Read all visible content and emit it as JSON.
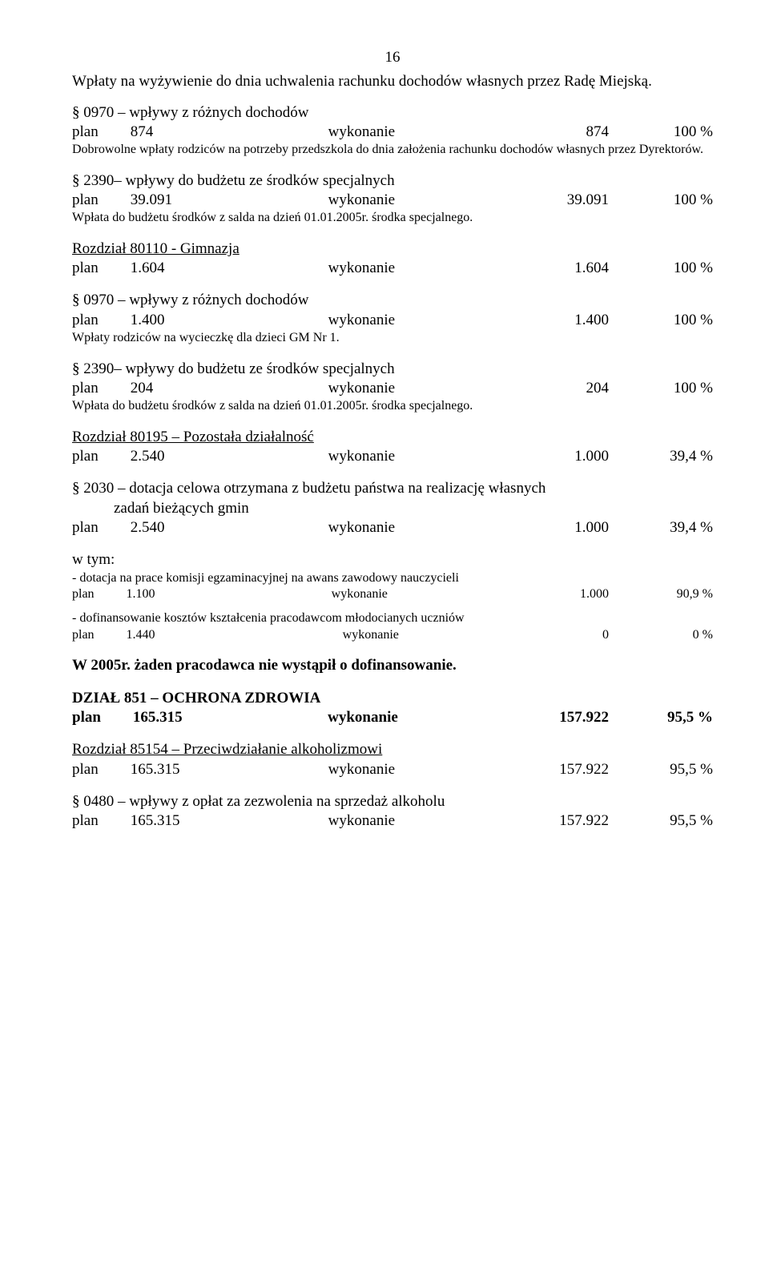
{
  "pageNumber": "16",
  "intro": "Wpłaty na wyżywienie do dnia uchwalenia rachunku dochodów własnych przez Radę Miejską.",
  "s0970a": {
    "title": "§ 0970 – wpływy z różnych dochodów",
    "row": {
      "c1": "plan",
      "c2": "874",
      "c3": "wykonanie",
      "c4": "874",
      "c5": "100 %"
    },
    "note": "Dobrowolne wpłaty rodziców na potrzeby przedszkola do dnia założenia rachunku dochodów własnych przez Dyrektorów."
  },
  "s2390a": {
    "title": "§ 2390– wpływy do budżetu ze środków specjalnych",
    "row": {
      "c1": "plan",
      "c2": "39.091",
      "c3": "wykonanie",
      "c4": "39.091",
      "c5": "100 %"
    },
    "note": "Wpłata do budżetu środków z salda na dzień 01.01.2005r. środka specjalnego."
  },
  "r80110": {
    "title": "Rozdział 80110 - Gimnazja",
    "row": {
      "c1": "plan",
      "c2": "1.604",
      "c3": "wykonanie",
      "c4": "1.604",
      "c5": "100 %"
    }
  },
  "s0970b": {
    "title": "§ 0970 – wpływy z różnych dochodów",
    "row": {
      "c1": "plan",
      "c2": "1.400",
      "c3": "wykonanie",
      "c4": "1.400",
      "c5": "100 %"
    },
    "note": "Wpłaty rodziców na wycieczkę dla dzieci GM Nr 1."
  },
  "s2390b": {
    "title": "§ 2390– wpływy do budżetu ze środków specjalnych",
    "row": {
      "c1": "plan",
      "c2": "204",
      "c3": "wykonanie",
      "c4": "204",
      "c5": "100 %"
    },
    "note": "Wpłata do budżetu środków z salda na dzień 01.01.2005r. środka specjalnego."
  },
  "r80195": {
    "title": "Rozdział 80195 – Pozostała działalność",
    "row": {
      "c1": "plan",
      "c2": "2.540",
      "c3": "wykonanie",
      "c4": "1.000",
      "c5": "39,4 %"
    }
  },
  "s2030": {
    "titleLine1": "§ 2030 – dotacja celowa otrzymana z budżetu państwa na realizację własnych",
    "titleLine2": "zadań bieżących gmin",
    "row": {
      "c1": "plan",
      "c2": "2.540",
      "c3": "wykonanie",
      "c4": "1.000",
      "c5": "39,4 %"
    }
  },
  "wtym": {
    "label": "w tym:",
    "item1": {
      "text": "- dotacja na prace komisji egzaminacyjnej na awans zawodowy nauczycieli",
      "row": {
        "c1": "plan",
        "c2": "1.100",
        "c3": "wykonanie",
        "c4": "1.000",
        "c5": "90,9 %"
      }
    },
    "item2": {
      "text": "- dofinansowanie kosztów kształcenia pracodawcom młodocianych uczniów",
      "row": {
        "c1": "plan",
        "c2": "1.440",
        "c3": "wykonanie",
        "c4": "0",
        "c5": "0 %"
      }
    }
  },
  "noApply": "W 2005r. żaden pracodawca nie wystąpił o dofinansowanie.",
  "d851": {
    "title": "DZIAŁ 851 – OCHRONA ZDROWIA",
    "row": {
      "c1": "plan",
      "c2": "165.315",
      "c3": "wykonanie",
      "c4": "157.922",
      "c5": "95,5 %"
    }
  },
  "r85154": {
    "title": "Rozdział 85154 – Przeciwdziałanie alkoholizmowi",
    "row": {
      "c1": "plan",
      "c2": "165.315",
      "c3": "wykonanie",
      "c4": "157.922",
      "c5": "95,5 %"
    }
  },
  "s0480": {
    "title": "§ 0480 –  wpływy z opłat za zezwolenia na sprzedaż alkoholu",
    "row": {
      "c1": "plan",
      "c2": "165.315",
      "c3": "wykonanie",
      "c4": "157.922",
      "c5": "95,5 %"
    }
  }
}
